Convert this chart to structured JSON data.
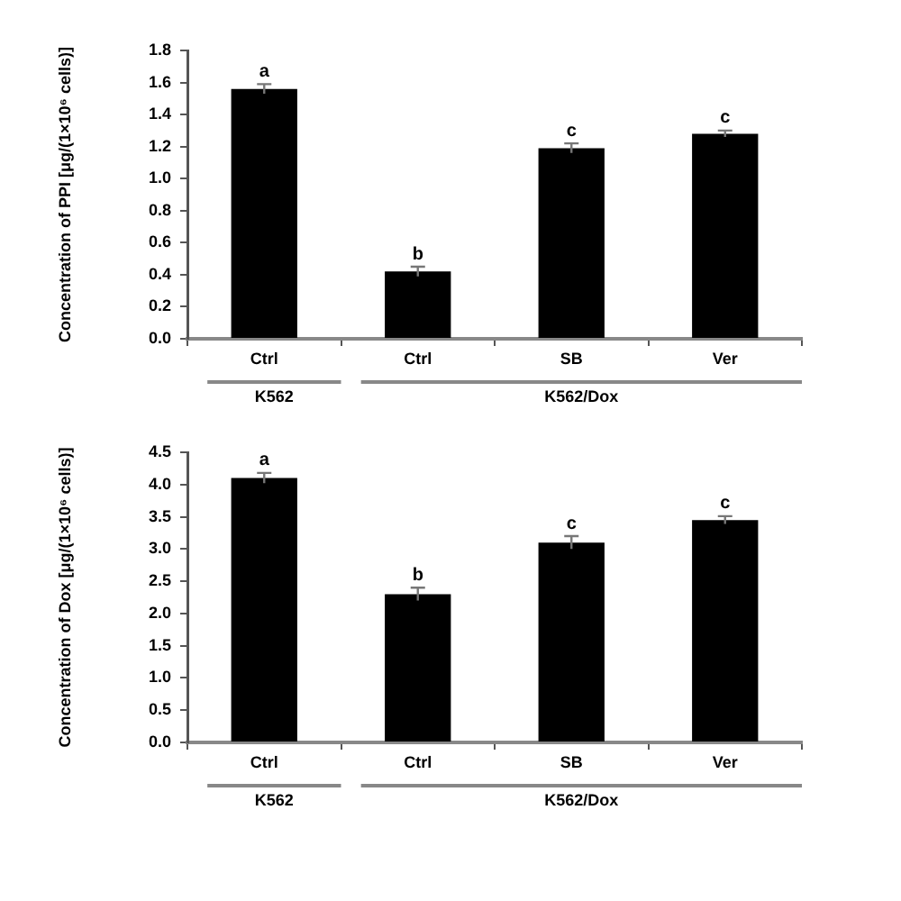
{
  "chart_data": [
    {
      "type": "bar",
      "categories": [
        "Ctrl",
        "Ctrl",
        "SB",
        "Ver"
      ],
      "values": [
        1.56,
        0.42,
        1.19,
        1.28
      ],
      "errors": [
        0.03,
        0.03,
        0.03,
        0.02
      ],
      "value_labels": [
        "a",
        "b",
        "c",
        "c"
      ],
      "color": "#000000",
      "ylabel": "Concentration of PPI [μg/(1×10⁶ cells)]",
      "ylim": [
        0,
        1.8
      ],
      "yticks": [
        {
          "value": 0,
          "label": "0.0"
        },
        {
          "value": 0.2,
          "label": "0.2"
        },
        {
          "value": 0.4,
          "label": "0.4"
        },
        {
          "value": 0.6,
          "label": "0.6"
        },
        {
          "value": 0.8,
          "label": "0.8"
        },
        {
          "value": 1,
          "label": "1.0"
        },
        {
          "value": 1.2,
          "label": "1.2"
        },
        {
          "value": 1.4,
          "label": "1.4"
        },
        {
          "value": 1.6,
          "label": "1.6"
        },
        {
          "value": 1.8,
          "label": "1.8"
        }
      ],
      "annotations": [
        "K562",
        "K562/Dox"
      ],
      "grid": false,
      "legend": false
    },
    {
      "type": "bar",
      "categories": [
        "Ctrl",
        "Ctrl",
        "SB",
        "Ver"
      ],
      "values": [
        4.1,
        2.3,
        3.1,
        3.45
      ],
      "errors": [
        0.08,
        0.1,
        0.1,
        0.06
      ],
      "value_labels": [
        "a",
        "b",
        "c",
        "c"
      ],
      "color": "#000000",
      "ylabel": "Concentration of Dox [μg/(1×10⁶ cells)]",
      "ylim": [
        0,
        4.5
      ],
      "yticks": [
        {
          "value": 0,
          "label": "0.0"
        },
        {
          "value": 0.5,
          "label": "0.5"
        },
        {
          "value": 1,
          "label": "1.0"
        },
        {
          "value": 1.5,
          "label": "1.5"
        },
        {
          "value": 2,
          "label": "2.0"
        },
        {
          "value": 2.5,
          "label": "2.5"
        },
        {
          "value": 3,
          "label": "3.0"
        },
        {
          "value": 3.5,
          "label": "3.5"
        },
        {
          "value": 4,
          "label": "4.0"
        },
        {
          "value": 4.5,
          "label": "4.5"
        }
      ],
      "annotations": [
        "K562",
        "K562/Dox"
      ],
      "grid": false,
      "legend": false
    }
  ]
}
